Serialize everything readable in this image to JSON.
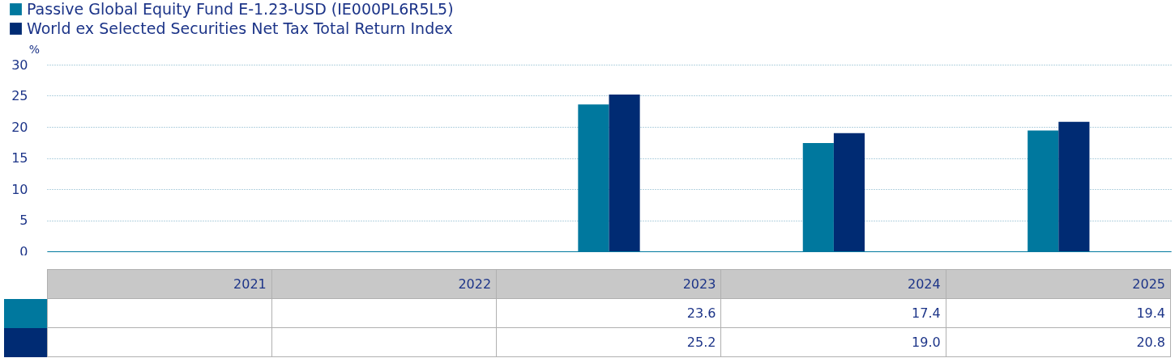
{
  "chart_data": {
    "type": "bar",
    "ylabel": "%",
    "categories": [
      "2021",
      "2022",
      "2023",
      "2024",
      "2025"
    ],
    "series": [
      {
        "name": "Passive Global Equity Fund E-1.23-USD (IE000PL6R5L5)",
        "color": "#00789e",
        "values": [
          null,
          null,
          23.6,
          17.4,
          19.4
        ],
        "value_labels": [
          null,
          null,
          "23.6",
          "17.4",
          "19.4"
        ]
      },
      {
        "name": "World ex Selected Securities Net Tax Total Return Index",
        "color": "#002b73",
        "values": [
          null,
          null,
          25.2,
          19.0,
          20.8
        ],
        "value_labels": [
          null,
          null,
          "25.2",
          "19.0",
          "20.8"
        ]
      }
    ],
    "ylim": [
      0,
      30
    ],
    "yticks": [
      0,
      5,
      10,
      15,
      20,
      25,
      30
    ],
    "grid": "y",
    "legend": "top left"
  }
}
